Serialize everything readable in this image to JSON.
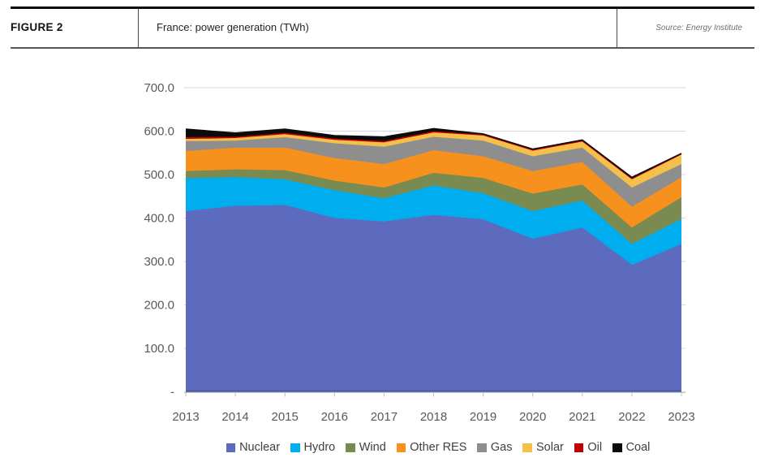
{
  "header": {
    "figure_label": "FIGURE 2",
    "title": "France: power generation (TWh)",
    "source": "Source: Energy Institute"
  },
  "chart_data": {
    "type": "area",
    "stacked": true,
    "title": "France: power generation (TWh)",
    "xlabel": "",
    "ylabel": "",
    "ylim": [
      0,
      700
    ],
    "grid": true,
    "legend_position": "bottom",
    "x": [
      "2013",
      "2014",
      "2015",
      "2016",
      "2017",
      "2018",
      "2019",
      "2020",
      "2021",
      "2022",
      "2023"
    ],
    "series": [
      {
        "name": "Nuclear",
        "color": "#5c6bbe",
        "values": [
          416,
          428,
          430,
          400,
          392,
          407,
          397,
          352,
          378,
          292,
          340
        ]
      },
      {
        "name": "Hydro",
        "color": "#00aeef",
        "values": [
          76,
          66,
          59,
          64,
          53,
          68,
          60,
          64,
          62,
          48,
          58
        ]
      },
      {
        "name": "Wind",
        "color": "#7a8b51",
        "values": [
          16,
          18,
          21,
          22,
          25,
          29,
          35,
          40,
          37,
          38,
          50
        ]
      },
      {
        "name": "Other RES",
        "color": "#f6911e",
        "values": [
          46,
          50,
          52,
          52,
          54,
          52,
          50,
          52,
          52,
          48,
          46
        ]
      },
      {
        "name": "Gas",
        "color": "#8e8e8e",
        "values": [
          23,
          16,
          24,
          34,
          40,
          31,
          36,
          34,
          33,
          44,
          30
        ]
      },
      {
        "name": "Solar",
        "color": "#f5c04a",
        "values": [
          5,
          6,
          7,
          8,
          10,
          10,
          12,
          13,
          14,
          19,
          22
        ]
      },
      {
        "name": "Oil",
        "color": "#c00000",
        "values": [
          4,
          3,
          3,
          3,
          3,
          3,
          2,
          2,
          2,
          2,
          2
        ]
      },
      {
        "name": "Coal",
        "color": "#0b0b0b",
        "values": [
          19,
          9,
          9,
          7,
          10,
          6,
          2,
          2,
          2,
          3,
          1
        ]
      }
    ],
    "y_ticks": [
      700,
      600,
      500,
      400,
      300,
      200,
      100,
      0
    ],
    "y_tick_labels": [
      "700.0",
      "600.0",
      "500.0",
      "400.0",
      "300.0",
      "200.0",
      "100.0",
      "-"
    ],
    "style": {
      "grid_color": "#d9d9d9",
      "tick_color": "#bfbfbf",
      "axis_label_color": "#595959",
      "baseline_color": "#4a569b"
    }
  }
}
